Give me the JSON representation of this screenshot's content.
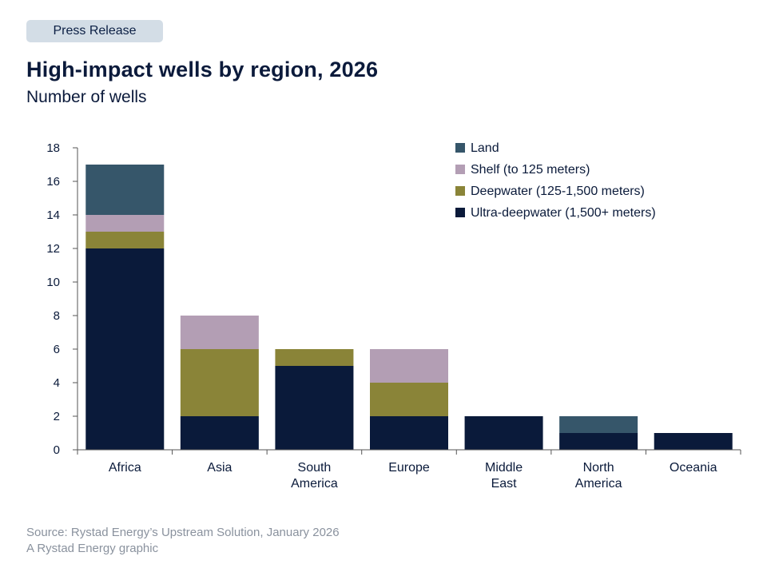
{
  "header": {
    "badge": "Press Release",
    "title": "High-impact wells by region, 2026",
    "subtitle": "Number of wells"
  },
  "footer": {
    "source": "Source: Rystad Energy’s Upstream Solution, January 2026",
    "credit": "A Rystad Energy graphic"
  },
  "colors": {
    "land": "#36566a",
    "shelf": "#b39eb4",
    "deepwater": "#8a8438",
    "ultra_deepwater": "#0a1a3a",
    "axis": "#555555",
    "text": "#0a1a3a",
    "badge_bg": "#d3dde6",
    "source_text": "#8a929e"
  },
  "chart_data": {
    "type": "bar",
    "stacked": true,
    "categories": [
      "Africa",
      "Asia",
      "South America",
      "Europe",
      "Middle East",
      "North America",
      "Oceania"
    ],
    "category_lines": [
      [
        "Africa"
      ],
      [
        "Asia"
      ],
      [
        "South",
        "America"
      ],
      [
        "Europe"
      ],
      [
        "Middle",
        "East"
      ],
      [
        "North",
        "America"
      ],
      [
        "Oceania"
      ]
    ],
    "series": [
      {
        "name": "Ultra-deepwater (1,500+ meters)",
        "color": "#0a1a3a",
        "values": [
          12,
          2,
          5,
          2,
          2,
          1,
          1
        ]
      },
      {
        "name": "Deepwater (125-1,500 meters)",
        "color": "#8a8438",
        "values": [
          1,
          4,
          1,
          2,
          0,
          0,
          0
        ]
      },
      {
        "name": "Shelf (to 125 meters)",
        "color": "#b39eb4",
        "values": [
          1,
          2,
          0,
          2,
          0,
          0,
          0
        ]
      },
      {
        "name": "Land",
        "color": "#36566a",
        "values": [
          3,
          0,
          0,
          0,
          0,
          1,
          0
        ]
      }
    ],
    "legend_order": [
      "Land",
      "Shelf (to 125 meters)",
      "Deepwater (125-1,500 meters)",
      "Ultra-deepwater (1,500+ meters)"
    ],
    "legend_position": "top-right",
    "ylim": [
      0,
      18
    ],
    "yticks": [
      0,
      2,
      4,
      6,
      8,
      10,
      12,
      14,
      16,
      18
    ],
    "ytick_labels": [
      "0",
      "2",
      "4",
      "6",
      "8",
      "10",
      "12",
      "14",
      "16",
      "18"
    ],
    "grid": false,
    "xlabel": "",
    "ylabel": ""
  }
}
